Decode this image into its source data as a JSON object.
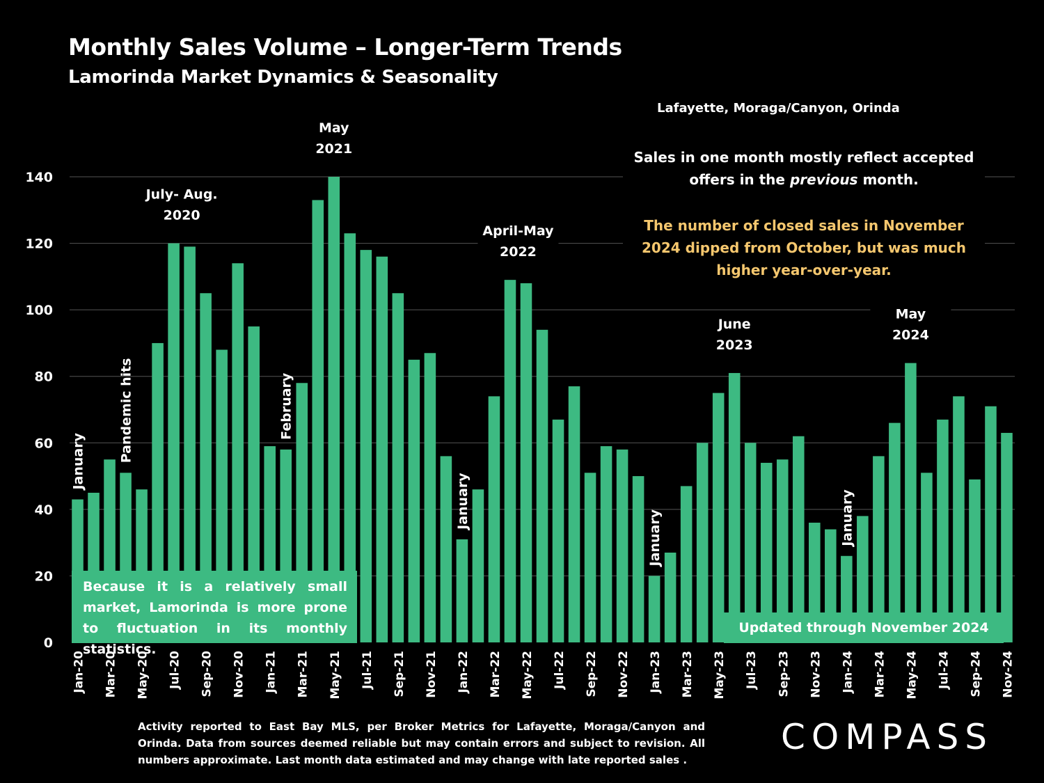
{
  "title": "Monthly Sales Volume – Longer-Term Trends",
  "subtitle": "Lamorinda Market Dynamics & Seasonality",
  "region": "Lafayette, Moraga/Canyon, Orinda",
  "note_lead": "Sales in one month mostly reflect accepted offers in the previous month.",
  "note_highlight": "The number of closed sales in November 2024 dipped from October, but  was much higher year-over-year.",
  "small_market_note": "Because it is a relatively small market, Lamorinda is more prone to fluctuation in its monthly statistics.",
  "updated_note": "Updated through November 2024",
  "footnote": "Activity reported to East Bay MLS, per Broker Metrics for Lafayette, Moraga/Canyon and Orinda. Data from sources deemed reliable but may contain errors and subject to revision. All numbers approximate. Last month data estimated and may change with late reported sales .",
  "logo_text": "COMPASS",
  "colors": {
    "bar": "#3DBA82",
    "grid": "#555555",
    "highlight_text": "#F5C76E",
    "background": "#000000"
  },
  "chart_data": {
    "type": "bar",
    "ylim": [
      0,
      140
    ],
    "y_ticks": [
      0,
      20,
      40,
      60,
      80,
      100,
      120,
      140
    ],
    "grid": true,
    "categories": [
      "Jan-20",
      "Feb-20",
      "Mar-20",
      "Apr-20",
      "May-20",
      "Jun-20",
      "Jul-20",
      "Aug-20",
      "Sep-20",
      "Oct-20",
      "Nov-20",
      "Dec-20",
      "Jan-21",
      "Feb-21",
      "Mar-21",
      "Apr-21",
      "May-21",
      "Jun-21",
      "Jul-21",
      "Aug-21",
      "Sep-21",
      "Oct-21",
      "Nov-21",
      "Dec-21",
      "Jan-22",
      "Feb-22",
      "Mar-22",
      "Apr-22",
      "May-22",
      "Jun-22",
      "Jul-22",
      "Aug-22",
      "Sep-22",
      "Oct-22",
      "Nov-22",
      "Dec-22",
      "Jan-23",
      "Feb-23",
      "Mar-23",
      "Apr-23",
      "May-23",
      "Jun-23",
      "Jul-23",
      "Aug-23",
      "Sep-23",
      "Oct-23",
      "Nov-23",
      "Dec-23",
      "Jan-24",
      "Feb-24",
      "Mar-24",
      "Apr-24",
      "May-24",
      "Jun-24",
      "Jul-24",
      "Aug-24",
      "Sep-24",
      "Oct-24",
      "Nov-24"
    ],
    "tick_labels": [
      "Jan-20",
      "Mar-20",
      "May-20",
      "Jul-20",
      "Sep-20",
      "Nov-20",
      "Jan-21",
      "Mar-21",
      "May-21",
      "Jul-21",
      "Sep-21",
      "Nov-21",
      "Jan-22",
      "Mar-22",
      "May-22",
      "Jul-22",
      "Sep-22",
      "Nov-22",
      "Jan-23",
      "Mar-23",
      "May-23",
      "Jul-23",
      "Sep-23",
      "Nov-23",
      "Jan-24",
      "Mar-24",
      "May-24",
      "Jul-24",
      "Sep-24",
      "Nov-24"
    ],
    "values": [
      43,
      45,
      55,
      51,
      46,
      90,
      120,
      119,
      105,
      88,
      114,
      95,
      59,
      58,
      78,
      133,
      140,
      123,
      118,
      116,
      105,
      85,
      87,
      56,
      31,
      46,
      74,
      109,
      108,
      94,
      67,
      77,
      51,
      59,
      58,
      50,
      20,
      27,
      47,
      60,
      75,
      81,
      60,
      54,
      55,
      62,
      36,
      34,
      26,
      38,
      56,
      66,
      84,
      51,
      67,
      74,
      49,
      71,
      63
    ],
    "annotations": [
      {
        "text": "January",
        "index": 0,
        "orientation": "vertical"
      },
      {
        "text": "Pandemic hits",
        "index": 3,
        "orientation": "vertical"
      },
      {
        "text": "July- Aug.",
        "text2": "2020",
        "index": 6.5,
        "orientation": "horizontal"
      },
      {
        "text": "February",
        "index": 13,
        "orientation": "vertical"
      },
      {
        "text": "May",
        "text2": "2021",
        "index": 16,
        "orientation": "horizontal"
      },
      {
        "text": "January",
        "index": 24,
        "orientation": "vertical"
      },
      {
        "text": "April-May",
        "text2": "2022",
        "index": 27.5,
        "orientation": "horizontal"
      },
      {
        "text": "January",
        "index": 36,
        "orientation": "vertical"
      },
      {
        "text": "June",
        "text2": "2023",
        "index": 41,
        "orientation": "horizontal"
      },
      {
        "text": "January",
        "index": 48,
        "orientation": "vertical"
      },
      {
        "text": "May",
        "text2": "2024",
        "index": 52,
        "orientation": "horizontal"
      }
    ]
  }
}
